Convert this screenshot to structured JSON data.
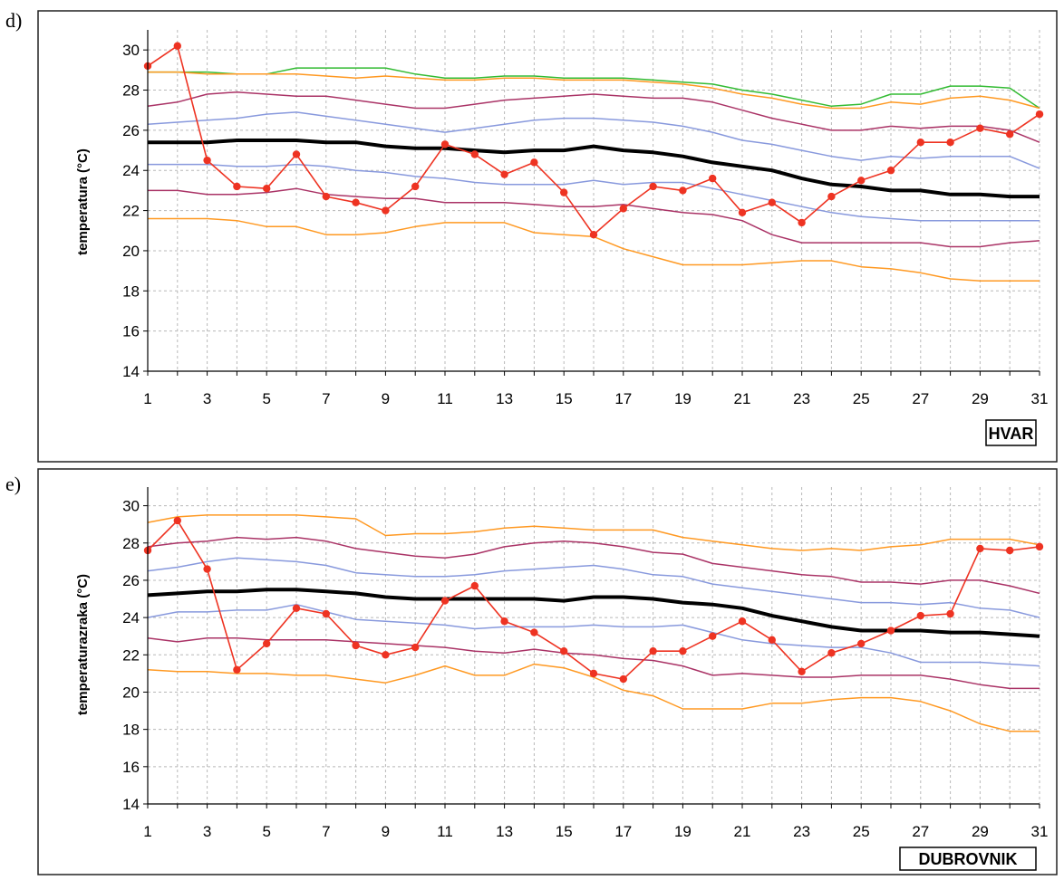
{
  "chart_data": [
    {
      "type": "line",
      "panel_label": "d)",
      "station": "HVAR",
      "xlabel": "",
      "ylabel": "temperatura (°C)",
      "xlim": [
        1,
        31
      ],
      "ylim": [
        14,
        30
      ],
      "xticks": [
        1,
        3,
        5,
        7,
        9,
        11,
        13,
        15,
        17,
        19,
        21,
        23,
        25,
        27,
        29,
        31
      ],
      "yticks": [
        14,
        16,
        18,
        20,
        22,
        24,
        26,
        28,
        30
      ],
      "grid": true,
      "colors": {
        "max": "#33bb33",
        "p90": "#ff9922",
        "p75": "#aa3366",
        "p60": "#8899dd",
        "mean": "#000000",
        "p40": "#8899dd",
        "p25": "#aa3366",
        "p10": "#ff9922",
        "observed": "#ee3322"
      },
      "x": [
        1,
        2,
        3,
        4,
        5,
        6,
        7,
        8,
        9,
        10,
        11,
        12,
        13,
        14,
        15,
        16,
        17,
        18,
        19,
        20,
        21,
        22,
        23,
        24,
        25,
        26,
        27,
        28,
        29,
        30,
        31
      ],
      "series": [
        {
          "key": "max",
          "values": [
            28.9,
            28.9,
            28.9,
            28.8,
            28.8,
            29.1,
            29.1,
            29.1,
            29.1,
            28.8,
            28.6,
            28.6,
            28.7,
            28.7,
            28.6,
            28.6,
            28.6,
            28.5,
            28.4,
            28.3,
            28.0,
            27.8,
            27.5,
            27.2,
            27.3,
            27.8,
            27.8,
            28.2,
            28.2,
            28.1,
            27.1
          ]
        },
        {
          "key": "p90",
          "values": [
            28.9,
            28.9,
            28.8,
            28.8,
            28.8,
            28.8,
            28.7,
            28.6,
            28.7,
            28.6,
            28.5,
            28.5,
            28.6,
            28.6,
            28.5,
            28.5,
            28.5,
            28.4,
            28.3,
            28.1,
            27.8,
            27.6,
            27.3,
            27.1,
            27.1,
            27.4,
            27.3,
            27.6,
            27.7,
            27.5,
            27.1
          ]
        },
        {
          "key": "p75",
          "values": [
            27.2,
            27.4,
            27.8,
            27.9,
            27.8,
            27.7,
            27.7,
            27.5,
            27.3,
            27.1,
            27.1,
            27.3,
            27.5,
            27.6,
            27.7,
            27.8,
            27.7,
            27.6,
            27.6,
            27.4,
            27.0,
            26.6,
            26.3,
            26.0,
            26.0,
            26.2,
            26.1,
            26.2,
            26.2,
            26.0,
            25.4
          ]
        },
        {
          "key": "p60",
          "values": [
            26.3,
            26.4,
            26.5,
            26.6,
            26.8,
            26.9,
            26.7,
            26.5,
            26.3,
            26.1,
            25.9,
            26.1,
            26.3,
            26.5,
            26.6,
            26.6,
            26.5,
            26.4,
            26.2,
            25.9,
            25.5,
            25.3,
            25.0,
            24.7,
            24.5,
            24.7,
            24.6,
            24.7,
            24.7,
            24.7,
            24.1
          ]
        },
        {
          "key": "mean",
          "values": [
            25.4,
            25.4,
            25.4,
            25.5,
            25.5,
            25.5,
            25.4,
            25.4,
            25.2,
            25.1,
            25.1,
            25.0,
            24.9,
            25.0,
            25.0,
            25.2,
            25.0,
            24.9,
            24.7,
            24.4,
            24.2,
            24.0,
            23.6,
            23.3,
            23.2,
            23.0,
            23.0,
            22.8,
            22.8,
            22.7,
            22.7
          ]
        },
        {
          "key": "p40",
          "values": [
            24.3,
            24.3,
            24.3,
            24.2,
            24.2,
            24.3,
            24.2,
            24.0,
            23.9,
            23.7,
            23.6,
            23.4,
            23.3,
            23.3,
            23.3,
            23.5,
            23.3,
            23.4,
            23.4,
            23.1,
            22.8,
            22.5,
            22.2,
            21.9,
            21.7,
            21.6,
            21.5,
            21.5,
            21.5,
            21.5,
            21.5
          ]
        },
        {
          "key": "p25",
          "values": [
            23.0,
            23.0,
            22.8,
            22.8,
            22.9,
            23.1,
            22.8,
            22.7,
            22.6,
            22.6,
            22.4,
            22.4,
            22.4,
            22.3,
            22.2,
            22.2,
            22.3,
            22.1,
            21.9,
            21.8,
            21.5,
            20.8,
            20.4,
            20.4,
            20.4,
            20.4,
            20.4,
            20.2,
            20.2,
            20.4,
            20.5
          ]
        },
        {
          "key": "p10",
          "values": [
            21.6,
            21.6,
            21.6,
            21.5,
            21.2,
            21.2,
            20.8,
            20.8,
            20.9,
            21.2,
            21.4,
            21.4,
            21.4,
            20.9,
            20.8,
            20.7,
            20.1,
            19.7,
            19.3,
            19.3,
            19.3,
            19.4,
            19.5,
            19.5,
            19.2,
            19.1,
            18.9,
            18.6,
            18.5,
            18.5,
            18.5
          ]
        },
        {
          "key": "observed",
          "markers": true,
          "values": [
            29.2,
            30.2,
            24.5,
            23.2,
            23.1,
            24.8,
            22.7,
            22.4,
            22.0,
            23.2,
            25.3,
            24.8,
            23.8,
            24.4,
            22.9,
            20.8,
            22.1,
            23.2,
            23.0,
            23.6,
            21.9,
            22.4,
            21.4,
            22.7,
            23.5,
            24.0,
            25.4,
            25.4,
            26.1,
            25.8,
            26.8
          ]
        }
      ]
    },
    {
      "type": "line",
      "panel_label": "e)",
      "station": "DUBROVNIK",
      "xlabel": "",
      "ylabel": "temperaturazraka (°C)",
      "xlim": [
        1,
        31
      ],
      "ylim": [
        14,
        30
      ],
      "xticks": [
        1,
        3,
        5,
        7,
        9,
        11,
        13,
        15,
        17,
        19,
        21,
        23,
        25,
        27,
        29,
        31
      ],
      "yticks": [
        14,
        16,
        18,
        20,
        22,
        24,
        26,
        28,
        30
      ],
      "grid": true,
      "colors": {
        "p90": "#ff9922",
        "p75": "#aa3366",
        "p60": "#8899dd",
        "mean": "#000000",
        "p40": "#8899dd",
        "p25": "#aa3366",
        "p10": "#ff9922",
        "observed": "#ee3322"
      },
      "x": [
        1,
        2,
        3,
        4,
        5,
        6,
        7,
        8,
        9,
        10,
        11,
        12,
        13,
        14,
        15,
        16,
        17,
        18,
        19,
        20,
        21,
        22,
        23,
        24,
        25,
        26,
        27,
        28,
        29,
        30,
        31
      ],
      "series": [
        {
          "key": "p90",
          "values": [
            29.1,
            29.4,
            29.5,
            29.5,
            29.5,
            29.5,
            29.4,
            29.3,
            28.4,
            28.5,
            28.5,
            28.6,
            28.8,
            28.9,
            28.8,
            28.7,
            28.7,
            28.7,
            28.3,
            28.1,
            27.9,
            27.7,
            27.6,
            27.7,
            27.6,
            27.8,
            27.9,
            28.2,
            28.2,
            28.2,
            27.9
          ]
        },
        {
          "key": "p75",
          "values": [
            27.8,
            28.0,
            28.1,
            28.3,
            28.2,
            28.3,
            28.1,
            27.7,
            27.5,
            27.3,
            27.2,
            27.4,
            27.8,
            28.0,
            28.1,
            28.0,
            27.8,
            27.5,
            27.4,
            26.9,
            26.7,
            26.5,
            26.3,
            26.2,
            25.9,
            25.9,
            25.8,
            26.0,
            26.0,
            25.7,
            25.3
          ]
        },
        {
          "key": "p60",
          "values": [
            26.5,
            26.7,
            27.0,
            27.2,
            27.1,
            27.0,
            26.8,
            26.4,
            26.3,
            26.2,
            26.2,
            26.3,
            26.5,
            26.6,
            26.7,
            26.8,
            26.6,
            26.3,
            26.2,
            25.8,
            25.6,
            25.4,
            25.2,
            25.0,
            24.8,
            24.8,
            24.7,
            24.8,
            24.5,
            24.4,
            24.0
          ]
        },
        {
          "key": "mean",
          "values": [
            25.2,
            25.3,
            25.4,
            25.4,
            25.5,
            25.5,
            25.4,
            25.3,
            25.1,
            25.0,
            25.0,
            25.0,
            25.0,
            25.0,
            24.9,
            25.1,
            25.1,
            25.0,
            24.8,
            24.7,
            24.5,
            24.1,
            23.8,
            23.5,
            23.3,
            23.3,
            23.3,
            23.2,
            23.2,
            23.1,
            23.0
          ]
        },
        {
          "key": "p40",
          "values": [
            24.0,
            24.3,
            24.3,
            24.4,
            24.4,
            24.7,
            24.3,
            23.9,
            23.8,
            23.7,
            23.6,
            23.4,
            23.5,
            23.5,
            23.5,
            23.6,
            23.5,
            23.5,
            23.6,
            23.2,
            22.8,
            22.6,
            22.5,
            22.4,
            22.4,
            22.1,
            21.6,
            21.6,
            21.6,
            21.5,
            21.4
          ]
        },
        {
          "key": "p25",
          "values": [
            22.9,
            22.7,
            22.9,
            22.9,
            22.8,
            22.8,
            22.8,
            22.7,
            22.6,
            22.5,
            22.4,
            22.2,
            22.1,
            22.3,
            22.1,
            22.0,
            21.8,
            21.7,
            21.4,
            20.9,
            21.0,
            20.9,
            20.8,
            20.8,
            20.9,
            20.9,
            20.9,
            20.7,
            20.4,
            20.2,
            20.2
          ]
        },
        {
          "key": "p10",
          "values": [
            21.2,
            21.1,
            21.1,
            21.0,
            21.0,
            20.9,
            20.9,
            20.7,
            20.5,
            20.9,
            21.4,
            20.9,
            20.9,
            21.5,
            21.3,
            20.8,
            20.1,
            19.8,
            19.1,
            19.1,
            19.1,
            19.4,
            19.4,
            19.6,
            19.7,
            19.7,
            19.5,
            19.0,
            18.3,
            17.9,
            17.9
          ]
        },
        {
          "key": "observed",
          "markers": true,
          "values": [
            27.6,
            29.2,
            26.6,
            21.2,
            22.6,
            24.5,
            24.2,
            22.5,
            22.0,
            22.4,
            24.9,
            25.7,
            23.8,
            23.2,
            22.2,
            21.0,
            20.7,
            22.2,
            22.2,
            23.0,
            23.8,
            22.8,
            21.1,
            22.1,
            22.6,
            23.3,
            24.1,
            24.2,
            27.7,
            27.6,
            27.8
          ]
        }
      ]
    }
  ]
}
